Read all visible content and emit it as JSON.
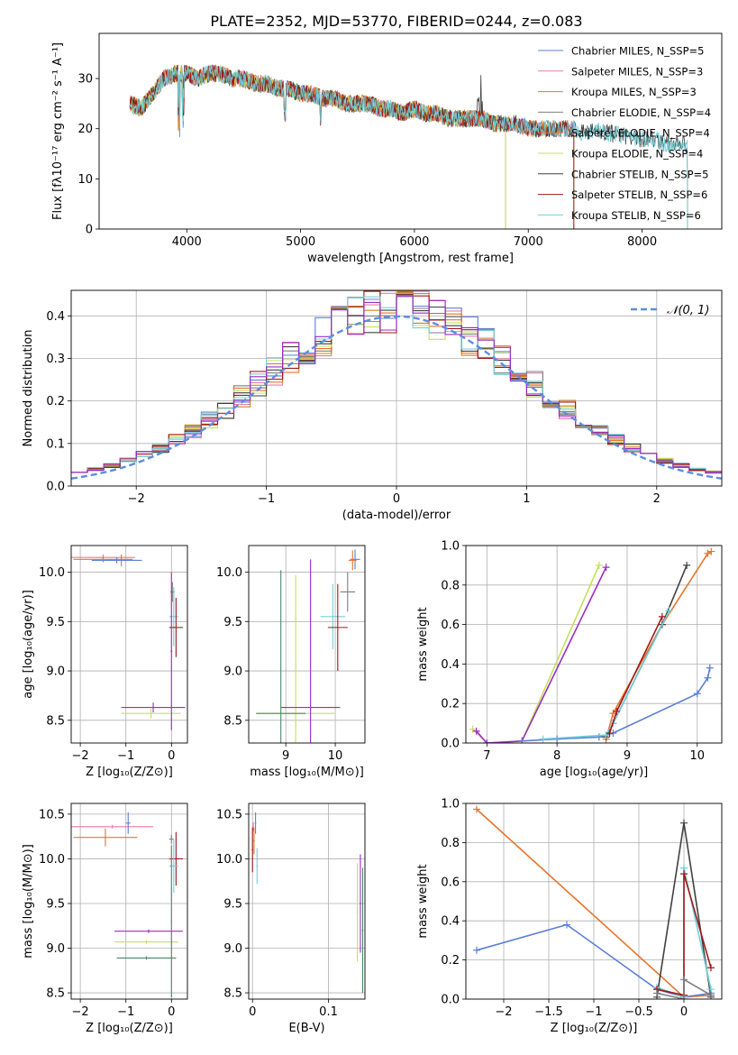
{
  "figure": {
    "title": "PLATE=2352, MJD=53770, FIBERID=0244, z=0.083"
  },
  "chart_data": [
    {
      "type": "line",
      "name": "spectrum",
      "xlabel": "wavelength [Angstrom, rest frame]",
      "ylabel": "Flux [fλ10⁻¹⁷ erg cm⁻² s⁻¹ A⁻¹]",
      "xlim": [
        3230,
        8700
      ],
      "ylim": [
        0,
        39
      ],
      "xticks": [
        4000,
        5000,
        6000,
        7000,
        8000
      ],
      "yticks": [
        0,
        10,
        20,
        30
      ],
      "grid": false,
      "legend": "upper right",
      "continuum": {
        "x": [
          3500,
          3600,
          3700,
          3800,
          3900,
          4000,
          4100,
          4200,
          4300,
          4400,
          4500,
          4600,
          4700,
          4800,
          4900,
          5000,
          5100,
          5200,
          5300,
          5400,
          5500,
          5600,
          5700,
          5800,
          5900,
          6000,
          6100,
          6200,
          6300,
          6400,
          6500,
          6600,
          6700,
          6800,
          6900,
          7000,
          7100,
          7200,
          7300,
          7400,
          7500,
          7600,
          7700,
          7800,
          7900,
          8000,
          8100,
          8200,
          8300,
          8400
        ],
        "y": [
          25,
          24,
          27,
          30,
          31,
          31,
          30,
          31,
          31,
          30,
          30,
          29,
          29,
          28,
          28,
          27,
          27,
          26,
          26,
          25,
          25,
          25,
          24,
          24,
          23,
          24,
          23,
          23,
          22,
          22,
          22,
          22,
          21,
          21,
          21,
          20,
          20,
          20,
          20,
          20,
          19,
          20,
          19,
          19,
          18,
          18,
          18,
          17,
          17,
          17
        ]
      },
      "series": [
        {
          "name": "Chabrier MILES, N_SSP=5",
          "color": "#5b7fd6",
          "xend": 7400
        },
        {
          "name": "Salpeter MILES, N_SSP=3",
          "color": "#e87aa8",
          "xend": 7400
        },
        {
          "name": "Kroupa MILES, N_SSP=3",
          "color": "#c8851a",
          "xend": 7400
        },
        {
          "name": "Chabrier ELODIE, N_SSP=4",
          "color": "#7f7f7f",
          "xend": 6800
        },
        {
          "name": "Salpeter ELODIE, N_SSP=4",
          "color": "#e8742a",
          "xend": 6800
        },
        {
          "name": "Kroupa ELODIE, N_SSP=4",
          "color": "#c5e05a",
          "xend": 6800
        },
        {
          "name": "Chabrier STELIB, N_SSP=5",
          "color": "#404040",
          "xend": 8400
        },
        {
          "name": "Salpeter STELIB, N_SSP=6",
          "color": "#a01818",
          "xend": 7400
        },
        {
          "name": "Kroupa STELIB, N_SSP=6",
          "color": "#70d0d8",
          "xend": 8400
        }
      ]
    },
    {
      "type": "histogram",
      "name": "residuals",
      "xlabel": "(data-model)/error",
      "ylabel": "Normed distribution",
      "xlim": [
        -2.5,
        2.5
      ],
      "ylim": [
        0,
        0.46
      ],
      "xticks": [
        -2,
        -1,
        0,
        1,
        2
      ],
      "yticks": [
        0.0,
        0.1,
        0.2,
        0.3,
        0.4
      ],
      "grid": true,
      "legend": "upper right",
      "reference": {
        "label": "𝒩(0, 1)",
        "color": "#5b8ee0",
        "mean": 0,
        "sigma": 1
      }
    },
    {
      "type": "scatter",
      "name": "age-vs-Z",
      "xlabel": "Z [log₁₀(Z/Z⊙)]",
      "ylabel": "age  [log₁₀(age/yr)]",
      "xlim": [
        -2.2,
        0.35
      ],
      "ylim": [
        8.27,
        10.27
      ],
      "xticks": [
        -2,
        -1,
        0
      ],
      "yticks": [
        8.5,
        9.0,
        9.5,
        10.0
      ],
      "grid": true,
      "points": [
        {
          "x": -1.5,
          "y": 10.15,
          "xerr": 0.7,
          "yerr": 0.03,
          "color": "#e87aa8"
        },
        {
          "x": -1.5,
          "y": 10.13,
          "xerr": 0.65,
          "yerr": 0.03,
          "color": "#e8742a"
        },
        {
          "x": -1.1,
          "y": 10.12,
          "xerr": 0.35,
          "yerr": 0.06,
          "color": "#c8851a"
        },
        {
          "x": -1.2,
          "y": 10.12,
          "xerr": 0.55,
          "yerr": 0.03,
          "color": "#5b7fd6"
        },
        {
          "x": 0.02,
          "y": 9.8,
          "xerr": 0.05,
          "yerr": 0.1,
          "color": "#7f7f7f"
        },
        {
          "x": 0.05,
          "y": 9.55,
          "xerr": 0.1,
          "yerr": 0.3,
          "color": "#70d0d8"
        },
        {
          "x": 0.1,
          "y": 9.44,
          "xerr": 0.15,
          "yerr": 0.3,
          "color": "#a01818"
        },
        {
          "x": -0.4,
          "y": 8.63,
          "xerr": 0.7,
          "yerr": 0.05,
          "color": "#9c2bc9"
        },
        {
          "x": -0.45,
          "y": 8.57,
          "xerr": 0.65,
          "yerr": 0.05,
          "color": "#c5e05a"
        },
        {
          "x": 0.0,
          "y": 9.2,
          "xerr": 0.02,
          "yerr": 0.8,
          "color": "#9c2bc9"
        }
      ]
    },
    {
      "type": "scatter",
      "name": "age-vs-mass",
      "xlabel": "mass [log₁₀(M/M⊙)]",
      "ylabel": "",
      "xlim": [
        8.25,
        10.6
      ],
      "ylim": [
        8.27,
        10.27
      ],
      "xticks": [
        9,
        10
      ],
      "yticks": [
        8.5,
        9.0,
        9.5,
        10.0
      ],
      "grid": true,
      "points": [
        {
          "x": 10.4,
          "y": 10.13,
          "xerr": 0.1,
          "yerr": 0.1,
          "color": "#5b7fd6"
        },
        {
          "x": 10.35,
          "y": 10.12,
          "xerr": 0.08,
          "yerr": 0.1,
          "color": "#e8742a"
        },
        {
          "x": 10.25,
          "y": 9.8,
          "xerr": 0.15,
          "yerr": 0.2,
          "color": "#7f7f7f"
        },
        {
          "x": 9.95,
          "y": 9.55,
          "xerr": 0.25,
          "yerr": 0.33,
          "color": "#70d0d8"
        },
        {
          "x": 10.05,
          "y": 9.44,
          "xerr": 0.2,
          "yerr": 0.44,
          "color": "#a01818"
        },
        {
          "x": 9.2,
          "y": 8.57,
          "xerr": 0.8,
          "yerr": 1.4,
          "color": "#c5e05a"
        },
        {
          "x": 9.5,
          "y": 8.63,
          "xerr": 0.6,
          "yerr": 1.5,
          "color": "#9c2bc9"
        },
        {
          "x": 8.9,
          "y": 8.57,
          "xerr": 0.5,
          "yerr": 1.45,
          "color": "#4a8a6a"
        }
      ]
    },
    {
      "type": "line",
      "name": "massweight-vs-age",
      "xlabel": "age  [log₁₀(age/yr)]",
      "ylabel": "mass weight",
      "xlim": [
        6.7,
        10.35
      ],
      "ylim": [
        0,
        1.0
      ],
      "xticks": [
        7,
        8,
        9,
        10
      ],
      "yticks": [
        0.0,
        0.2,
        0.4,
        0.6,
        0.8,
        1.0
      ],
      "grid": true,
      "series": [
        {
          "color": "#c5e05a",
          "x": [
            6.8,
            7.0,
            7.5,
            8.6
          ],
          "y": [
            0.07,
            0.0,
            0.01,
            0.9
          ]
        },
        {
          "color": "#9c2bc9",
          "x": [
            6.85,
            7.0,
            7.5,
            8.7
          ],
          "y": [
            0.06,
            0.0,
            0.01,
            0.89
          ]
        },
        {
          "color": "#5b7fd6",
          "x": [
            7.5,
            8.0,
            8.6,
            8.8,
            10.0,
            10.15,
            10.18
          ],
          "y": [
            0.01,
            0.02,
            0.03,
            0.05,
            0.25,
            0.33,
            0.38
          ]
        },
        {
          "color": "#e8742a",
          "x": [
            8.7,
            8.8,
            9.5,
            10.15,
            10.2
          ],
          "y": [
            0.02,
            0.15,
            0.6,
            0.96,
            0.97
          ]
        },
        {
          "color": "#404040",
          "x": [
            8.7,
            8.8,
            9.5,
            9.85
          ],
          "y": [
            0.03,
            0.1,
            0.6,
            0.9
          ]
        },
        {
          "color": "#70d0d8",
          "x": [
            7.8,
            8.7,
            8.8,
            9.6
          ],
          "y": [
            0.02,
            0.04,
            0.1,
            0.67
          ]
        },
        {
          "color": "#a01818",
          "x": [
            8.75,
            8.85,
            9.5
          ],
          "y": [
            0.05,
            0.16,
            0.64
          ]
        }
      ]
    },
    {
      "type": "scatter",
      "name": "mass-vs-Z",
      "xlabel": "Z [log₁₀(Z/Z⊙)]",
      "ylabel": "mass [log₁₀(M/M⊙)]",
      "xlim": [
        -2.2,
        0.35
      ],
      "ylim": [
        8.43,
        10.62
      ],
      "xticks": [
        -2,
        -1,
        0
      ],
      "yticks": [
        8.5,
        9.0,
        9.5,
        10.0,
        10.5
      ],
      "grid": true,
      "points": [
        {
          "x": -1.3,
          "y": 10.36,
          "xerr": 0.9,
          "yerr": 0.02,
          "color": "#e87aa8"
        },
        {
          "x": -0.95,
          "y": 10.4,
          "xerr": 0.05,
          "yerr": 0.12,
          "color": "#5b7fd6"
        },
        {
          "x": -1.45,
          "y": 10.24,
          "xerr": 0.7,
          "yerr": 0.1,
          "color": "#e8742a"
        },
        {
          "x": 0.0,
          "y": 10.22,
          "xerr": 0.05,
          "yerr": 0.05,
          "color": "#7f7f7f"
        },
        {
          "x": 0.1,
          "y": 10.0,
          "xerr": 0.15,
          "yerr": 0.3,
          "color": "#a01818"
        },
        {
          "x": 0.05,
          "y": 9.92,
          "xerr": 0.1,
          "yerr": 0.3,
          "color": "#70d0d8"
        },
        {
          "x": -0.5,
          "y": 9.19,
          "xerr": 0.75,
          "yerr": 0.02,
          "color": "#9c2bc9"
        },
        {
          "x": -0.55,
          "y": 9.07,
          "xerr": 0.7,
          "yerr": 0.02,
          "color": "#c5e05a"
        },
        {
          "x": -0.55,
          "y": 8.89,
          "xerr": 0.65,
          "yerr": 0.02,
          "color": "#4a8a6a"
        },
        {
          "x": 0.0,
          "y": 9.3,
          "xerr": 0.01,
          "yerr": 0.85,
          "color": "#4a8a6a"
        }
      ]
    },
    {
      "type": "scatter",
      "name": "mass-vs-ebv",
      "xlabel": "E(B-V)",
      "ylabel": "",
      "xlim": [
        -0.005,
        0.148
      ],
      "ylim": [
        8.43,
        10.62
      ],
      "xticks": [
        0.0,
        0.1
      ],
      "yticks": [
        8.5,
        9.0,
        9.5,
        10.0,
        10.5
      ],
      "grid": true,
      "points": [
        {
          "x": 0.004,
          "y": 10.4,
          "xerr": 0.001,
          "yerr": 0.12,
          "color": "#5b7fd6"
        },
        {
          "x": 0.001,
          "y": 10.36,
          "xerr": 0.001,
          "yerr": 0.05,
          "color": "#e87aa8"
        },
        {
          "x": 0.0,
          "y": 10.1,
          "xerr": 0.001,
          "yerr": 0.25,
          "color": "#a01818"
        },
        {
          "x": 0.002,
          "y": 10.2,
          "xerr": 0.001,
          "yerr": 0.15,
          "color": "#e8742a"
        },
        {
          "x": 0.006,
          "y": 9.92,
          "xerr": 0.001,
          "yerr": 0.2,
          "color": "#70d0d8"
        },
        {
          "x": 0.142,
          "y": 9.5,
          "xerr": 0.001,
          "yerr": 0.55,
          "color": "#9c2bc9"
        },
        {
          "x": 0.138,
          "y": 9.4,
          "xerr": 0.001,
          "yerr": 0.55,
          "color": "#c5e05a"
        },
        {
          "x": 0.145,
          "y": 9.2,
          "xerr": 0.001,
          "yerr": 0.7,
          "color": "#4a8a6a"
        }
      ]
    },
    {
      "type": "line",
      "name": "massweight-vs-Z",
      "xlabel": "Z [log₁₀(Z/Z⊙)]",
      "ylabel": "mass weight",
      "xlim": [
        -2.42,
        0.42
      ],
      "ylim": [
        0,
        1.0
      ],
      "xticks": [
        -2.0,
        -1.5,
        -1.0,
        -0.5,
        0.0
      ],
      "yticks": [
        0.0,
        0.2,
        0.4,
        0.6,
        0.8,
        1.0
      ],
      "grid": true,
      "series": [
        {
          "color": "#e8742a",
          "x": [
            -2.3,
            0.0,
            0.3
          ],
          "y": [
            0.97,
            0.01,
            0.02
          ]
        },
        {
          "color": "#5b7fd6",
          "x": [
            -2.3,
            -1.3,
            -0.3,
            0.0,
            0.3
          ],
          "y": [
            0.25,
            0.38,
            0.05,
            0.01,
            0.03
          ]
        },
        {
          "color": "#404040",
          "x": [
            -0.3,
            0.0,
            0.3
          ],
          "y": [
            0.01,
            0.9,
            0.01
          ]
        },
        {
          "color": "#70d0d8",
          "x": [
            -0.3,
            0.0,
            0.0,
            0.3
          ],
          "y": [
            0.06,
            0.01,
            0.67,
            0.05
          ]
        },
        {
          "color": "#a01818",
          "x": [
            -0.3,
            0.0,
            0.0,
            0.3
          ],
          "y": [
            0.05,
            0.02,
            0.64,
            0.16
          ]
        },
        {
          "color": "#7f7f7f",
          "x": [
            -0.3,
            0.0,
            0.0,
            0.3
          ],
          "y": [
            0.03,
            0.0,
            0.1,
            0.02
          ]
        }
      ]
    }
  ]
}
